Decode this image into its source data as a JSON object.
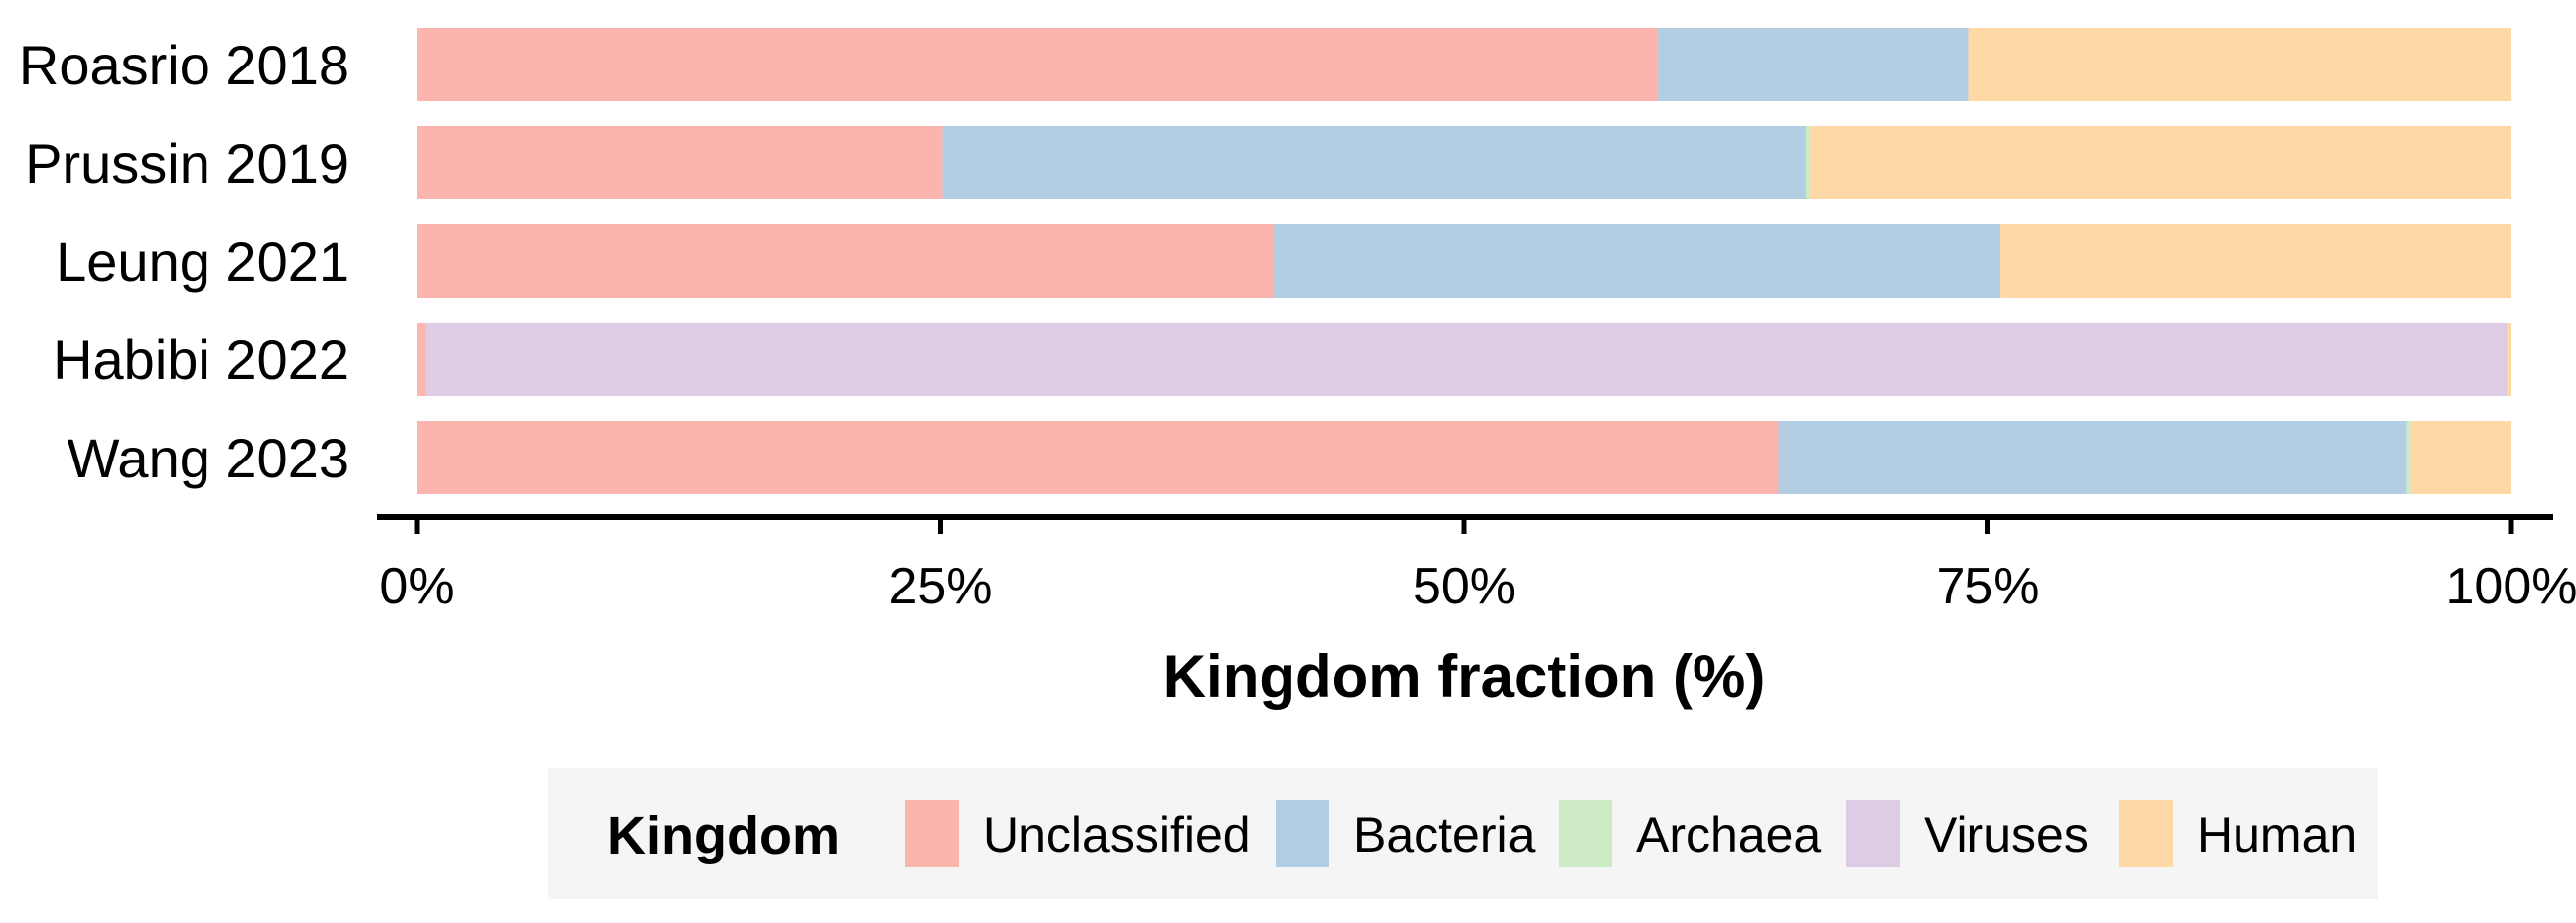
{
  "chart_data": {
    "type": "bar",
    "orientation": "horizontal",
    "stacked": true,
    "normalized": true,
    "categories": [
      "Roasrio 2018",
      "Prussin 2019",
      "Leung 2021",
      "Habibi 2022",
      "Wang 2023"
    ],
    "series": [
      {
        "name": "Unclassified",
        "color": "#FBB4AE",
        "values": [
          59.2,
          25.1,
          40.9,
          0.4,
          65.0
        ]
      },
      {
        "name": "Bacteria",
        "color": "#B3CDE3",
        "values": [
          14.9,
          41.2,
          34.7,
          0.0,
          30.0
        ]
      },
      {
        "name": "Archaea",
        "color": "#CCEBC5",
        "values": [
          0.0,
          0.2,
          0.0,
          0.0,
          0.2
        ]
      },
      {
        "name": "Viruses",
        "color": "#DECBE4",
        "values": [
          0.0,
          0.0,
          0.0,
          99.4,
          0.0
        ]
      },
      {
        "name": "Human",
        "color": "#FED9A6",
        "values": [
          25.9,
          33.5,
          24.4,
          0.2,
          4.8
        ]
      }
    ],
    "xlabel": "Kingdom fraction (%)",
    "xlim": [
      0,
      100
    ],
    "xticks": [
      "0%",
      "25%",
      "50%",
      "75%",
      "100%"
    ],
    "legend": {
      "title": "Kingdom",
      "position": "bottom"
    },
    "grid": false
  }
}
